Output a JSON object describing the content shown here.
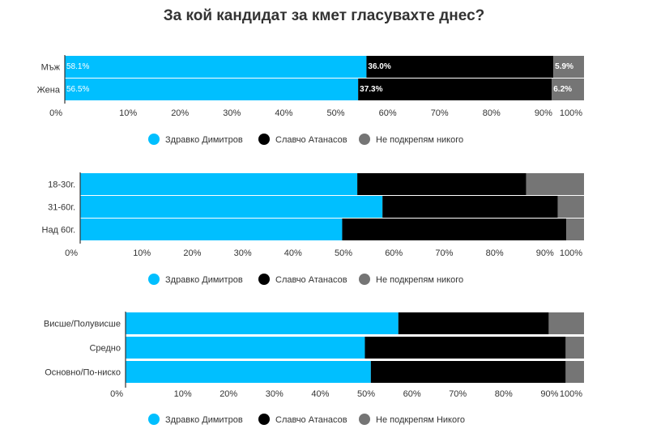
{
  "title": "За кой кандидат за кмет гласувахте днес?",
  "colors": {
    "Здравко Димитров": "#00bfff",
    "Славчо Атанасов": "#000000",
    "Не подкрепям никого": "#757575",
    "axis": "#333333",
    "text": "#333333"
  },
  "chart_data": [
    {
      "type": "bar",
      "orientation": "horizontal",
      "stacked": true,
      "categories": [
        "Мъж",
        "Жена"
      ],
      "series": [
        {
          "name": "Здравко Димитров",
          "values": [
            58.1,
            56.5
          ],
          "labels": [
            "58.1%",
            "56.5%"
          ]
        },
        {
          "name": "Славчо Атанасов",
          "values": [
            36.0,
            37.3
          ],
          "labels": [
            "36.0%",
            "37.3%"
          ]
        },
        {
          "name": "Не подкрепям никого",
          "values": [
            5.9,
            6.2
          ],
          "labels": [
            "5.9%",
            "6.2%"
          ]
        }
      ],
      "xlim": [
        0,
        100
      ],
      "xticks": [
        "0%",
        "10%",
        "20%",
        "30%",
        "40%",
        "50%",
        "60%",
        "70%",
        "80%",
        "90%",
        "100%"
      ],
      "legend": [
        "Здравко Димитров",
        "Славчо Атанасов",
        "Не подкрепям никого"
      ],
      "legend_position": "bottom"
    },
    {
      "type": "bar",
      "orientation": "horizontal",
      "stacked": true,
      "categories": [
        "18-30г.",
        "31-60г.",
        "Над 60г."
      ],
      "series": [
        {
          "name": "Здравко Димитров",
          "values": [
            55,
            60,
            52
          ]
        },
        {
          "name": "Славчо Атанасов",
          "values": [
            33.5,
            34.8,
            44.5
          ]
        },
        {
          "name": "Не подкрепям никого",
          "values": [
            11.5,
            5.2,
            3.5
          ]
        }
      ],
      "xlim": [
        0,
        100
      ],
      "xticks": [
        "0%",
        "10%",
        "20%",
        "30%",
        "40%",
        "50%",
        "60%",
        "70%",
        "80%",
        "90%",
        "100%"
      ],
      "legend": [
        "Здравко Димитров",
        "Славчо Атанасов",
        "Не подкрепям никого"
      ],
      "legend_position": "bottom"
    },
    {
      "type": "bar",
      "orientation": "horizontal",
      "stacked": true,
      "categories": [
        "Висше/Полувисше",
        "Средно",
        "Основно/По-ниско"
      ],
      "series": [
        {
          "name": "Здравко Димитров",
          "values": [
            59.5,
            52.2,
            53.5
          ]
        },
        {
          "name": "Славчо Атанасов",
          "values": [
            32.8,
            43.8,
            42.5
          ]
        },
        {
          "name": "Не подкрепям Никого",
          "values": [
            7.7,
            4.0,
            4.0
          ]
        }
      ],
      "xlim": [
        0,
        100
      ],
      "xticks": [
        "0%",
        "10%",
        "20%",
        "30%",
        "40%",
        "50%",
        "60%",
        "70%",
        "80%",
        "90%",
        "100%"
      ],
      "legend": [
        "Здравко Димитров",
        "Славчо Атанасов",
        "Не подкрепям Никого"
      ],
      "legend_position": "bottom"
    }
  ]
}
